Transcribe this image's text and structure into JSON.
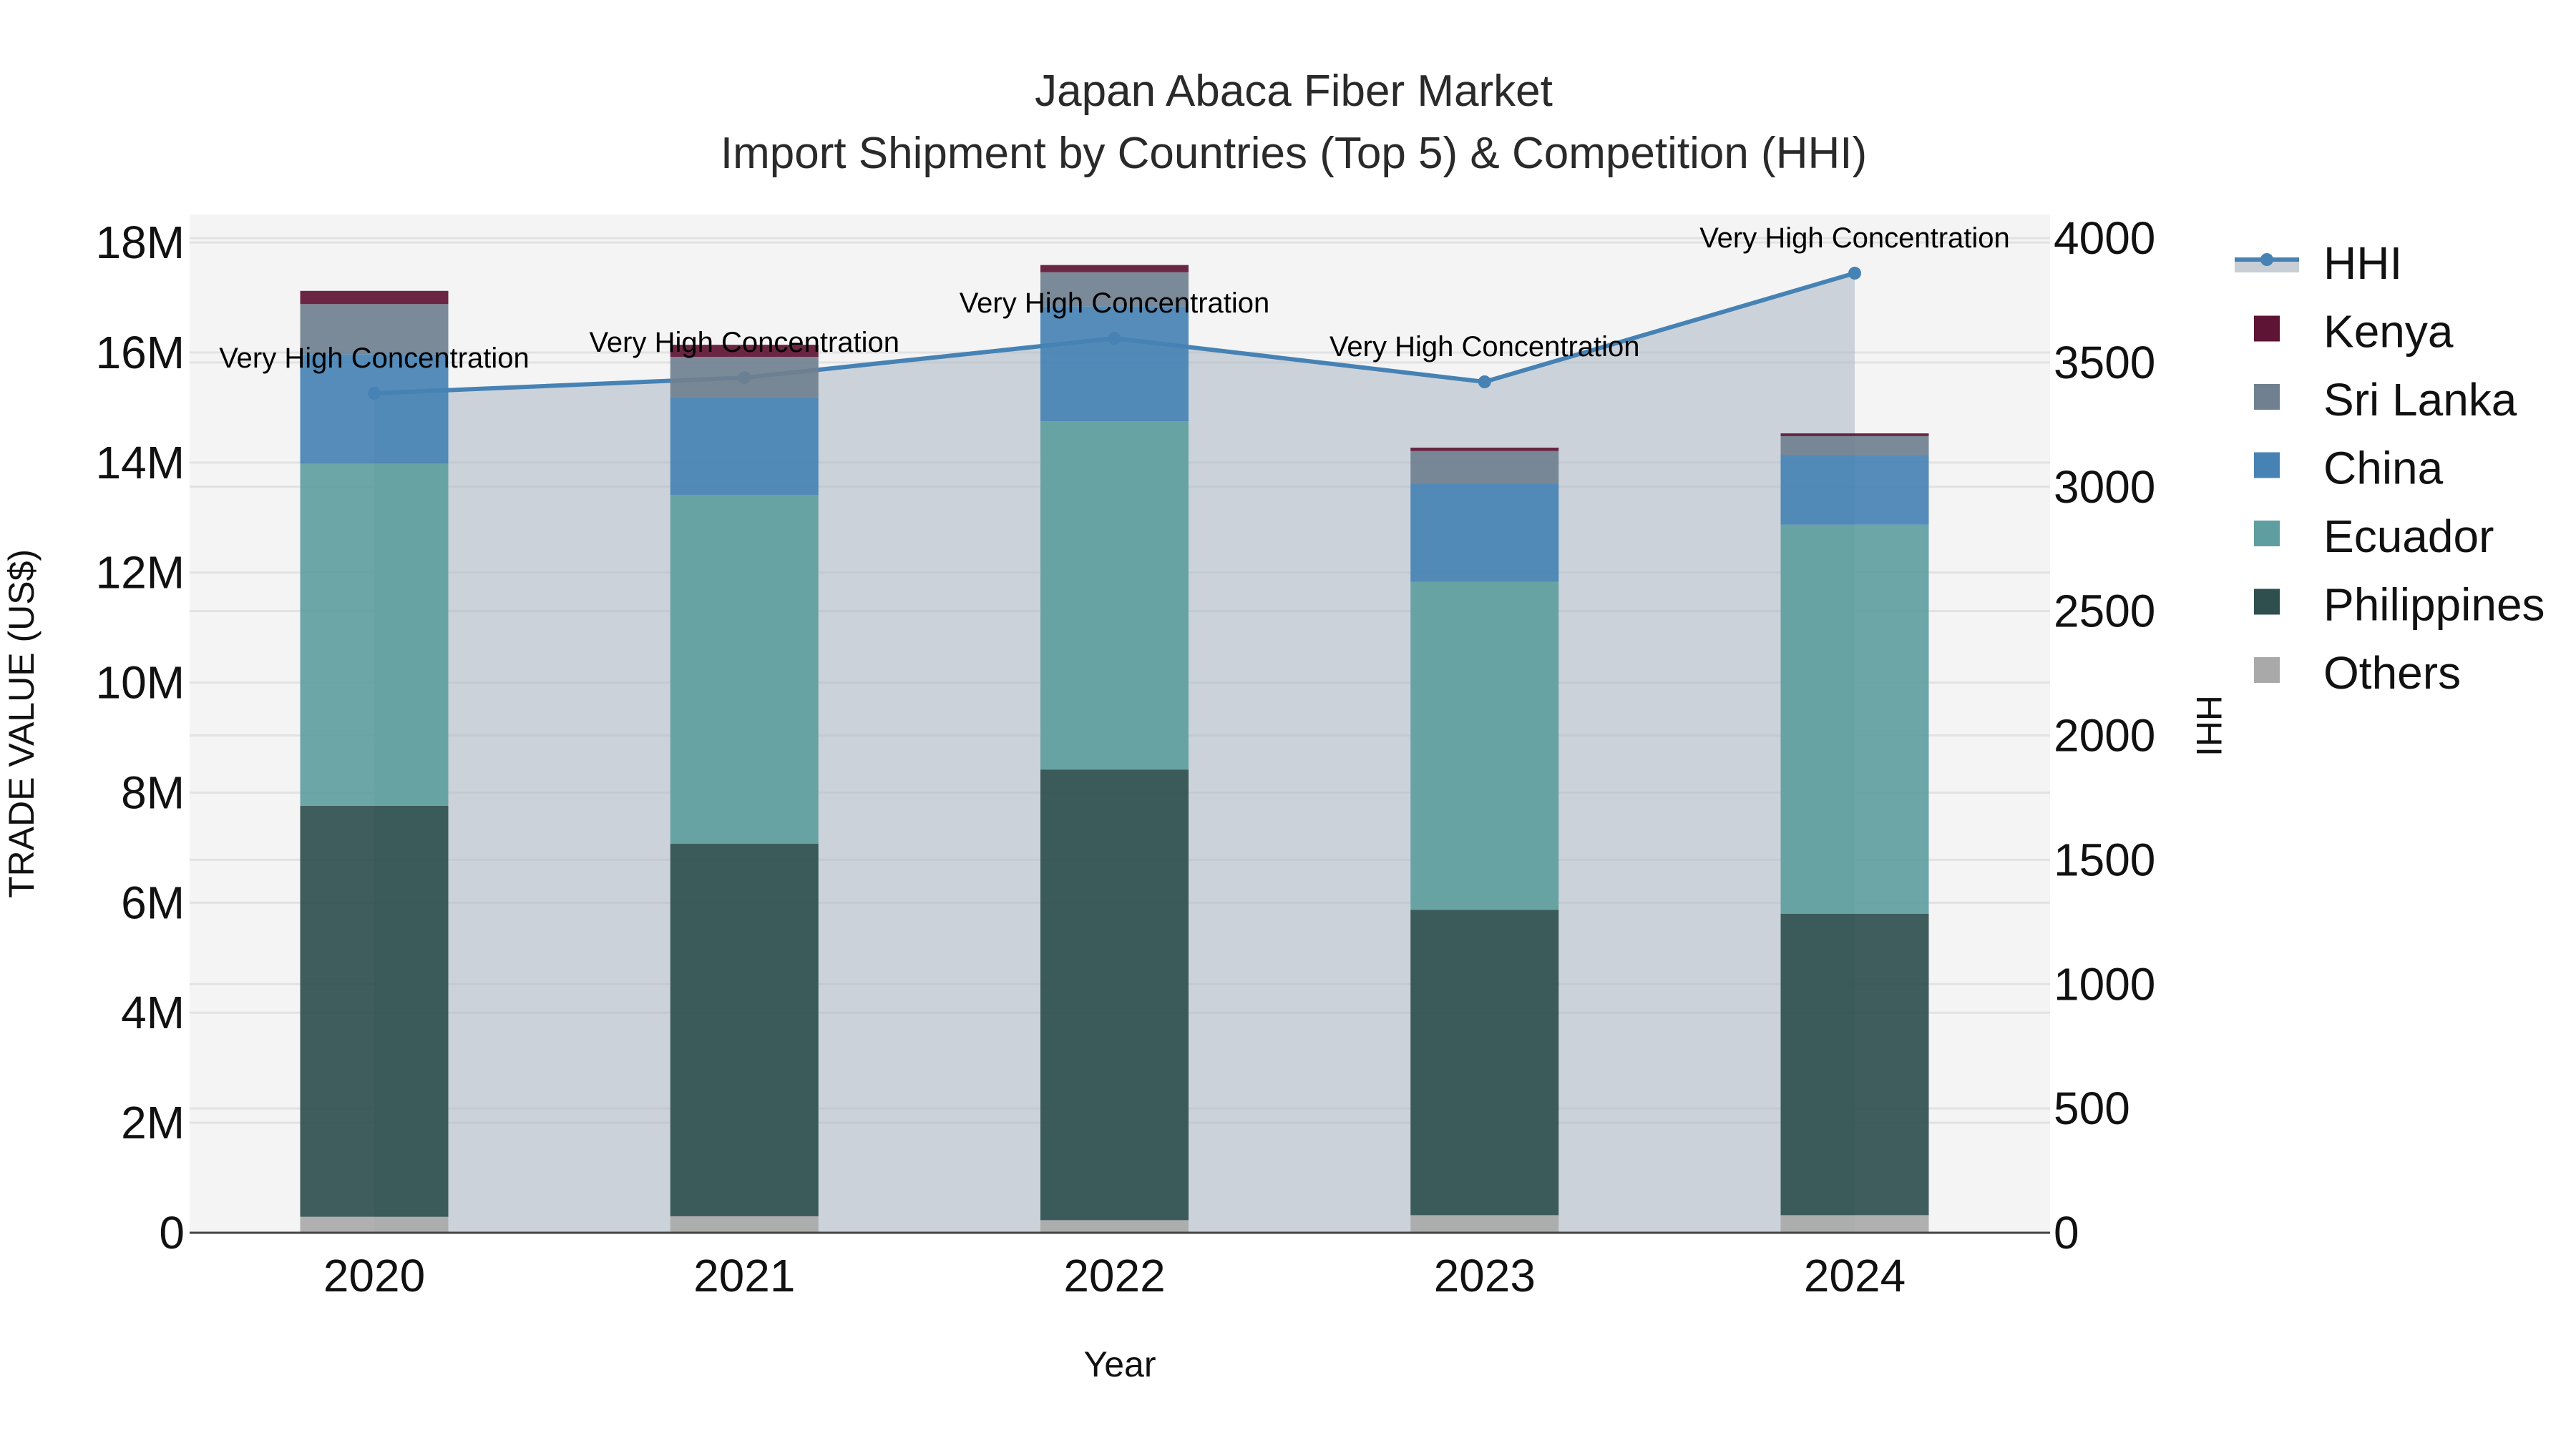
{
  "title": {
    "line1": "Japan Abaca Fiber Market",
    "line2": "Import Shipment by Countries (Top 5) & Competition (HHI)"
  },
  "axes": {
    "x_title": "Year",
    "y_left_title": "TRADE VALUE (US$)",
    "y_right_title": "HHI",
    "y_left_ticks": [
      "0",
      "2M",
      "4M",
      "6M",
      "8M",
      "10M",
      "12M",
      "14M",
      "16M",
      "18M"
    ],
    "y_right_ticks": [
      "0",
      "500",
      "1000",
      "1500",
      "2000",
      "2500",
      "3000",
      "3500",
      "4000"
    ]
  },
  "legend": [
    {
      "name": "HHI",
      "type": "line",
      "color": "#4682b4"
    },
    {
      "name": "Kenya",
      "type": "bar",
      "color": "#5e1434"
    },
    {
      "name": "Sri Lanka",
      "type": "bar",
      "color": "#708090"
    },
    {
      "name": "China",
      "type": "bar",
      "color": "#4682b4"
    },
    {
      "name": "Ecuador",
      "type": "bar",
      "color": "#5f9ea0"
    },
    {
      "name": "Philippines",
      "type": "bar",
      "color": "#2f4f4f"
    },
    {
      "name": "Others",
      "type": "bar",
      "color": "#a9a9a9"
    }
  ],
  "colors": {
    "plot_bg": "#f4f4f4",
    "grid": "#e2e2e2",
    "hhi_line": "#4682b4",
    "hhi_fill": "rgba(176,186,200,0.6)"
  },
  "chart_data": {
    "type": "bar",
    "stacked": true,
    "title": "Japan Abaca Fiber Market — Import Shipment by Countries (Top 5) & Competition (HHI)",
    "xlabel": "Year",
    "ylabel": "TRADE VALUE (US$)",
    "y2label": "HHI",
    "ylim": [
      0,
      18500000
    ],
    "y2lim": [
      0,
      4000
    ],
    "grid": true,
    "legend_position": "right",
    "categories": [
      "2020",
      "2021",
      "2022",
      "2023",
      "2024"
    ],
    "series": [
      {
        "name": "Others",
        "color": "#a9a9a9",
        "values": [
          290000,
          300000,
          230000,
          320000,
          320000
        ]
      },
      {
        "name": "Philippines",
        "color": "#2f4f4f",
        "values": [
          7470000,
          6770000,
          8190000,
          5550000,
          5480000
        ]
      },
      {
        "name": "Ecuador",
        "color": "#5f9ea0",
        "values": [
          6220000,
          6340000,
          6330000,
          5960000,
          7070000
        ]
      },
      {
        "name": "China",
        "color": "#4682b4",
        "values": [
          1990000,
          1780000,
          2090000,
          1790000,
          1270000
        ]
      },
      {
        "name": "Sri Lanka",
        "color": "#708090",
        "values": [
          910000,
          730000,
          620000,
          590000,
          340000
        ]
      },
      {
        "name": "Kenya",
        "color": "#5e1434",
        "values": [
          240000,
          220000,
          130000,
          60000,
          50000
        ]
      }
    ],
    "line_series": {
      "name": "HHI",
      "axis": "y2",
      "type": "line+area",
      "color": "#4682b4",
      "values": [
        3376,
        3439,
        3597,
        3422,
        3859
      ]
    },
    "annotations": [
      "Very High Concentration",
      "Very High Concentration",
      "Very High Concentration",
      "Very High Concentration",
      "Very High Concentration"
    ]
  }
}
